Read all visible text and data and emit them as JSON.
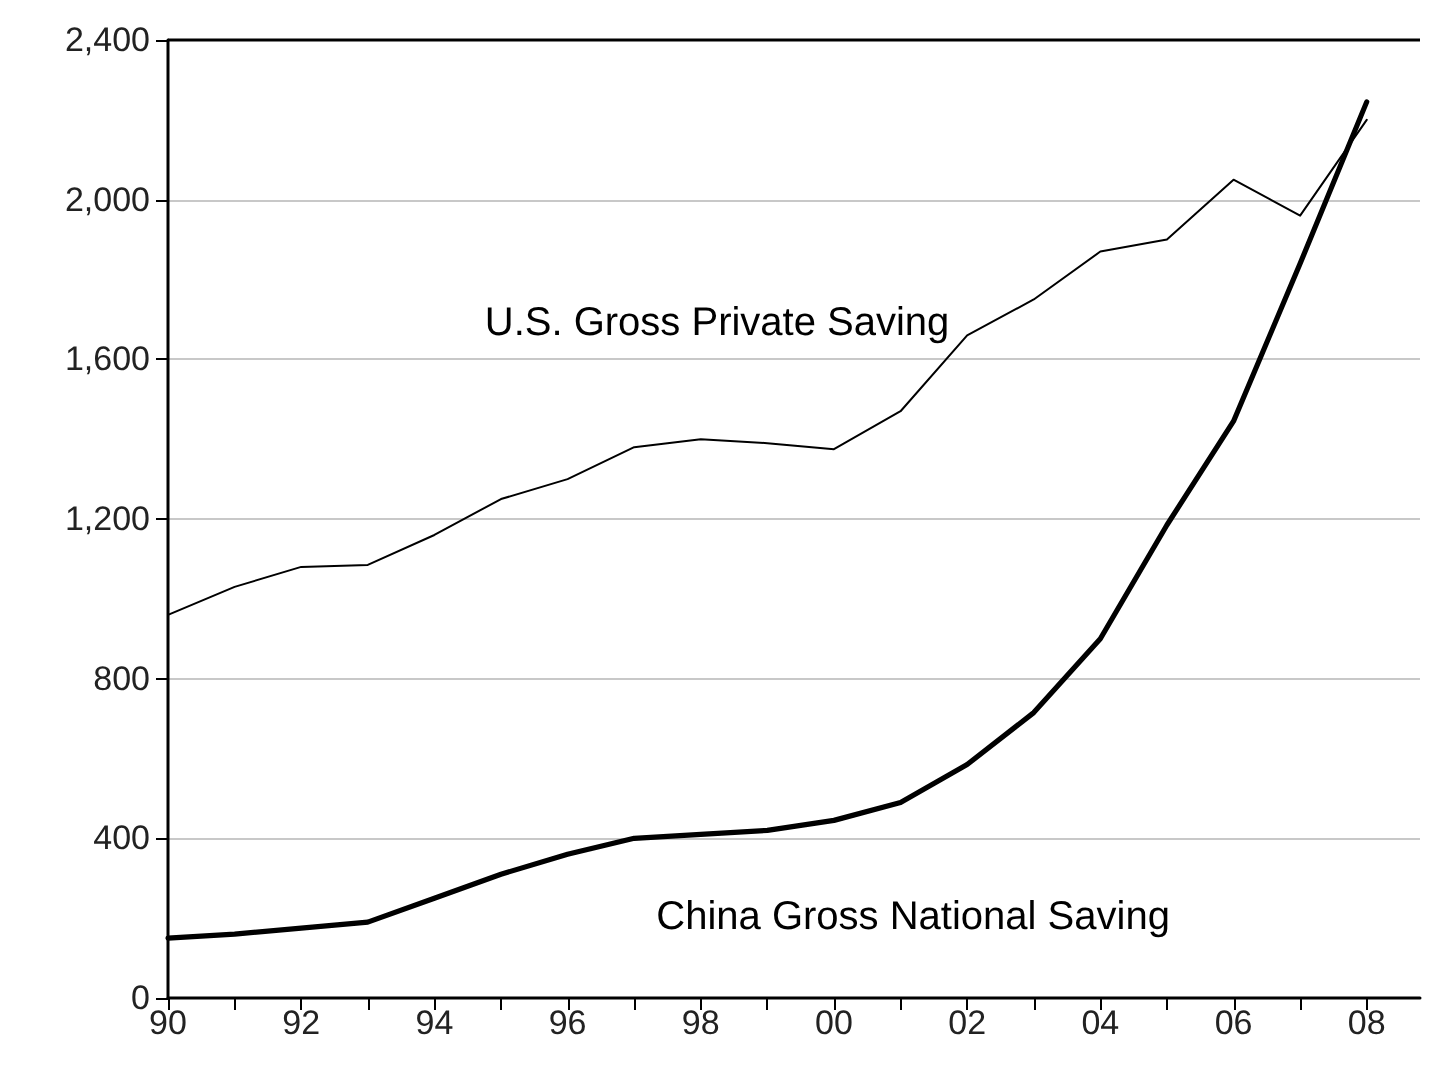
{
  "chart_data": {
    "type": "line",
    "x": [
      1990,
      1991,
      1992,
      1993,
      1994,
      1995,
      1996,
      1997,
      1998,
      1999,
      2000,
      2001,
      2002,
      2003,
      2004,
      2005,
      2006,
      2007,
      2008
    ],
    "series": [
      {
        "name": "U.S. Gross Private Saving",
        "color": "#000000",
        "values": [
          960,
          1030,
          1080,
          1085,
          1160,
          1250,
          1300,
          1380,
          1400,
          1390,
          1375,
          1470,
          1660,
          1750,
          1870,
          1900,
          2050,
          1960,
          2200
        ]
      },
      {
        "name": "China Gross National Saving",
        "color": "#000000",
        "values": [
          150,
          160,
          175,
          190,
          250,
          310,
          360,
          400,
          410,
          420,
          445,
          490,
          585,
          715,
          900,
          1185,
          1445,
          1840,
          2245
        ]
      }
    ],
    "xlim": [
      1990,
      2008.8
    ],
    "xticks": [
      {
        "value": 1990,
        "label": "90"
      },
      {
        "value": 1991,
        "label": null
      },
      {
        "value": 1992,
        "label": "92"
      },
      {
        "value": 1993,
        "label": null
      },
      {
        "value": 1994,
        "label": "94"
      },
      {
        "value": 1995,
        "label": null
      },
      {
        "value": 1996,
        "label": "96"
      },
      {
        "value": 1997,
        "label": null
      },
      {
        "value": 1998,
        "label": "98"
      },
      {
        "value": 1999,
        "label": null
      },
      {
        "value": 2000,
        "label": "00"
      },
      {
        "value": 2001,
        "label": null
      },
      {
        "value": 2002,
        "label": "02"
      },
      {
        "value": 2003,
        "label": null
      },
      {
        "value": 2004,
        "label": "04"
      },
      {
        "value": 2005,
        "label": null
      },
      {
        "value": 2006,
        "label": "06"
      },
      {
        "value": 2007,
        "label": null
      },
      {
        "value": 2008,
        "label": "08"
      }
    ],
    "ylim": [
      0,
      2400
    ],
    "yticks": [
      0,
      400,
      800,
      {
        "value": 1200,
        "label": "1,200"
      },
      {
        "value": 1600,
        "label": "1,600"
      },
      {
        "value": 2000,
        "label": "2,000"
      },
      {
        "value": 2400,
        "label": "2,400"
      }
    ],
    "grid": "y",
    "legend": false,
    "marker": "none",
    "line_style": "solid"
  }
}
